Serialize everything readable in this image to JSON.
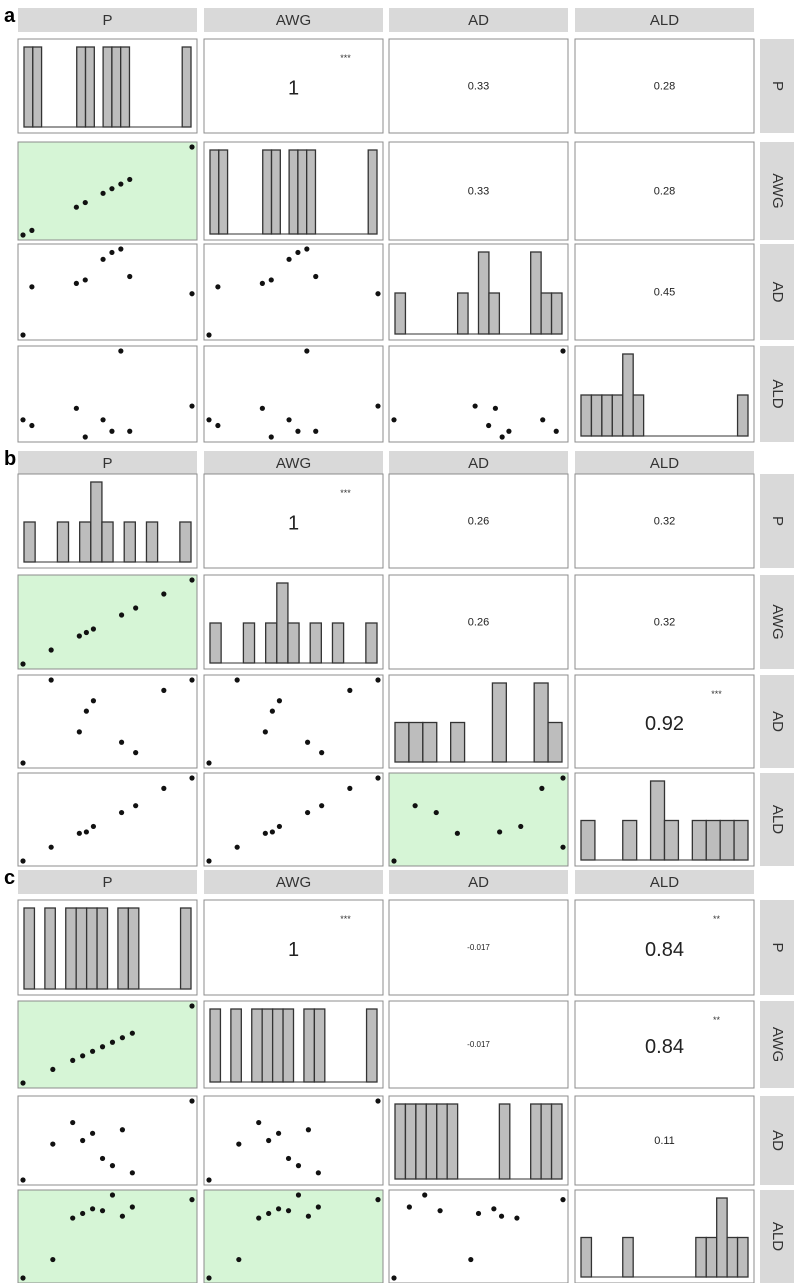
{
  "colors": {
    "strip": "#d9d9d9",
    "highlight": "#d6f5d6",
    "bar_fill": "#bdbdbd",
    "bar_stroke": "#333333",
    "point": "#111111",
    "border": "#8c8c8c"
  },
  "variables": [
    "P",
    "AWG",
    "AD",
    "ALD"
  ],
  "chart_data": [
    {
      "type": "scatter-matrix",
      "panel": "a",
      "variables": [
        "P",
        "AWG",
        "AD",
        "ALD"
      ],
      "correlations": [
        {
          "row": "P",
          "col": "AWG",
          "value": "1",
          "sig": "***"
        },
        {
          "row": "P",
          "col": "AD",
          "value": "0.33",
          "sig": ""
        },
        {
          "row": "P",
          "col": "ALD",
          "value": "0.28",
          "sig": ""
        },
        {
          "row": "AWG",
          "col": "AD",
          "value": "0.33",
          "sig": ""
        },
        {
          "row": "AWG",
          "col": "ALD",
          "value": "0.28",
          "sig": ""
        },
        {
          "row": "AD",
          "col": "ALD",
          "value": "0.45",
          "sig": ""
        }
      ],
      "highlighted_scatter": [
        [
          "AWG",
          "P"
        ]
      ],
      "histograms": {
        "P": [
          1,
          1,
          0,
          0,
          0,
          0,
          1,
          1,
          0,
          1,
          1,
          1,
          0,
          0,
          0,
          0,
          0,
          0,
          1
        ],
        "AWG": [
          1,
          1,
          0,
          0,
          0,
          0,
          1,
          1,
          0,
          1,
          1,
          1,
          0,
          0,
          0,
          0,
          0,
          0,
          1
        ],
        "AD": [
          1,
          0,
          0,
          0,
          0,
          0,
          1,
          0,
          2,
          1,
          0,
          0,
          0,
          2,
          1,
          1
        ],
        "ALD": [
          1,
          1,
          1,
          1,
          2,
          1,
          0,
          0,
          0,
          0,
          0,
          0,
          0,
          0,
          0,
          1
        ]
      },
      "values": {
        "P": [
          1,
          2,
          7,
          8,
          10,
          11,
          12,
          13,
          20
        ],
        "AWG": [
          1,
          2,
          7,
          8,
          10,
          11,
          12,
          13,
          20
        ],
        "AD": [
          1,
          8,
          8.5,
          9,
          12,
          13,
          13.5,
          9.5,
          7
        ],
        "ALD": [
          2,
          1.5,
          3,
          0.5,
          2,
          1,
          8,
          1,
          3.2
        ]
      }
    },
    {
      "type": "scatter-matrix",
      "panel": "b",
      "variables": [
        "P",
        "AWG",
        "AD",
        "ALD"
      ],
      "correlations": [
        {
          "row": "P",
          "col": "AWG",
          "value": "1",
          "sig": "***"
        },
        {
          "row": "P",
          "col": "AD",
          "value": "0.26",
          "sig": ""
        },
        {
          "row": "P",
          "col": "ALD",
          "value": "0.32",
          "sig": ""
        },
        {
          "row": "AWG",
          "col": "AD",
          "value": "0.26",
          "sig": ""
        },
        {
          "row": "AWG",
          "col": "ALD",
          "value": "0.32",
          "sig": ""
        },
        {
          "row": "AD",
          "col": "ALD",
          "value": "0.92",
          "sig": "***"
        }
      ],
      "highlighted_scatter": [
        [
          "AWG",
          "P"
        ],
        [
          "ALD",
          "AD"
        ]
      ],
      "histograms": {
        "P": [
          1,
          0,
          0,
          1,
          0,
          1,
          2,
          1,
          0,
          1,
          0,
          1,
          0,
          0,
          1
        ],
        "AWG": [
          1,
          0,
          0,
          1,
          0,
          1,
          2,
          1,
          0,
          1,
          0,
          1,
          0,
          0,
          1
        ],
        "AD": [
          1,
          1,
          1,
          0,
          1,
          0,
          0,
          2,
          0,
          0,
          2,
          1
        ],
        "ALD": [
          1,
          0,
          0,
          1,
          0,
          2,
          1,
          0,
          1,
          1,
          1,
          1
        ]
      },
      "values": {
        "P": [
          1,
          3,
          5,
          5.5,
          6,
          8,
          9,
          11,
          13
        ],
        "AWG": [
          1,
          3,
          5,
          5.5,
          6,
          8,
          9,
          11,
          13
        ],
        "AD": [
          2,
          10,
          5,
          7,
          8,
          4,
          3,
          9,
          10
        ],
        "ALD": [
          1,
          3,
          5,
          5.2,
          6,
          8,
          9,
          11.5,
          13
        ]
      }
    },
    {
      "type": "scatter-matrix",
      "panel": "c",
      "variables": [
        "P",
        "AWG",
        "AD",
        "ALD"
      ],
      "correlations": [
        {
          "row": "P",
          "col": "AWG",
          "value": "1",
          "sig": "***"
        },
        {
          "row": "P",
          "col": "AD",
          "value": "-0.017",
          "sig": ""
        },
        {
          "row": "P",
          "col": "ALD",
          "value": "0.84",
          "sig": "**"
        },
        {
          "row": "AWG",
          "col": "AD",
          "value": "-0.017",
          "sig": ""
        },
        {
          "row": "AWG",
          "col": "ALD",
          "value": "0.84",
          "sig": "**"
        },
        {
          "row": "AD",
          "col": "ALD",
          "value": "0.11",
          "sig": ""
        }
      ],
      "highlighted_scatter": [
        [
          "AWG",
          "P"
        ],
        [
          "ALD",
          "P"
        ],
        [
          "ALD",
          "AWG"
        ]
      ],
      "histograms": {
        "P": [
          1,
          0,
          1,
          0,
          1,
          1,
          1,
          1,
          0,
          1,
          1,
          0,
          0,
          0,
          0,
          1
        ],
        "AWG": [
          1,
          0,
          1,
          0,
          1,
          1,
          1,
          1,
          0,
          1,
          1,
          0,
          0,
          0,
          0,
          1
        ],
        "AD": [
          1,
          1,
          1,
          1,
          1,
          1,
          0,
          0,
          0,
          0,
          1,
          0,
          0,
          1,
          1,
          1
        ],
        "ALD": [
          1,
          0,
          0,
          0,
          1,
          0,
          0,
          0,
          0,
          0,
          0,
          1,
          1,
          2,
          1,
          1
        ]
      },
      "values": {
        "P": [
          1,
          4,
          6,
          7,
          8,
          9,
          10,
          11,
          12,
          18
        ],
        "AWG": [
          1,
          4,
          6,
          7,
          8,
          9,
          10,
          11,
          12,
          18
        ],
        "AD": [
          1,
          6,
          9,
          6.5,
          7.5,
          4,
          3,
          8,
          2,
          12
        ],
        "ALD": [
          0.5,
          2.5,
          7,
          7.5,
          8,
          7.8,
          9.5,
          7.2,
          8.2,
          9
        ]
      }
    }
  ]
}
